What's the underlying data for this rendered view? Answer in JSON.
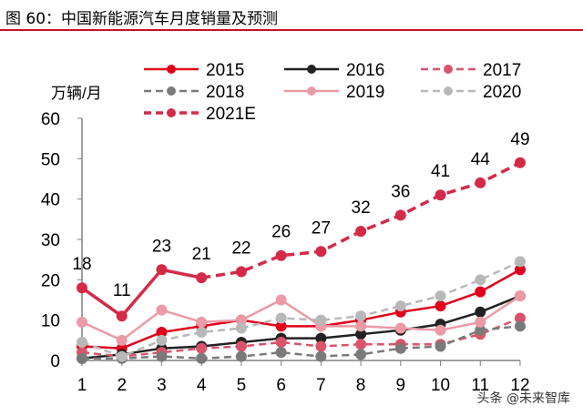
{
  "title": "图 60：中国新能源汽车月度销量及预测",
  "watermark": "头条 @未来智库",
  "chart_data": {
    "type": "line",
    "title": "图 60：中国新能源汽车月度销量及预测",
    "ylabel": "万辆/月",
    "xlabel": "",
    "ylim": [
      0,
      60
    ],
    "yticks": [
      0,
      10,
      20,
      30,
      40,
      50,
      60
    ],
    "categories": [
      "1",
      "2",
      "3",
      "4",
      "5",
      "6",
      "7",
      "8",
      "9",
      "10",
      "11",
      "12"
    ],
    "legend_position": "top",
    "grid": false,
    "series": [
      {
        "name": "2015",
        "color": "#e0001b",
        "dash": false,
        "values": [
          3.5,
          3,
          7,
          8.5,
          10,
          8.5,
          8.5,
          10,
          12,
          13.5,
          17,
          22.5
        ]
      },
      {
        "name": "2016",
        "color": "#222222",
        "dash": false,
        "values": [
          0.5,
          1.5,
          3,
          3.5,
          4.5,
          5.5,
          5.5,
          6.5,
          7.5,
          9,
          12,
          16
        ]
      },
      {
        "name": "2017",
        "color": "#d9546a",
        "dash": true,
        "values": [
          2,
          1,
          2,
          3,
          3.5,
          4.5,
          3.5,
          4,
          4,
          4,
          6.5,
          10.5
        ]
      },
      {
        "name": "2018",
        "color": "#7a7a7a",
        "dash": true,
        "values": [
          0.5,
          0.5,
          1,
          0.5,
          1,
          2,
          1,
          1.5,
          3,
          3.5,
          7.5,
          8.5
        ]
      },
      {
        "name": "2019",
        "color": "#eb9aa6",
        "dash": false,
        "values": [
          9.5,
          5,
          12.5,
          9.5,
          10,
          15,
          8.5,
          8.5,
          8,
          7.5,
          9.5,
          16
        ]
      },
      {
        "name": "2020",
        "color": "#b8b8b8",
        "dash": true,
        "values": [
          4.5,
          1,
          5,
          7,
          8,
          10.5,
          10,
          11,
          13.5,
          16,
          20,
          24.5
        ]
      },
      {
        "name": "2021E",
        "color": "#d42a48",
        "dash": true,
        "solid_until": "4",
        "values": [
          18,
          11,
          22.5,
          20.5,
          22,
          26,
          27,
          32,
          36,
          41,
          44,
          49
        ],
        "labels": [
          "18",
          "11",
          "23",
          "21",
          "22",
          "26",
          "27",
          "32",
          "36",
          "41",
          "44",
          "49"
        ]
      }
    ]
  }
}
